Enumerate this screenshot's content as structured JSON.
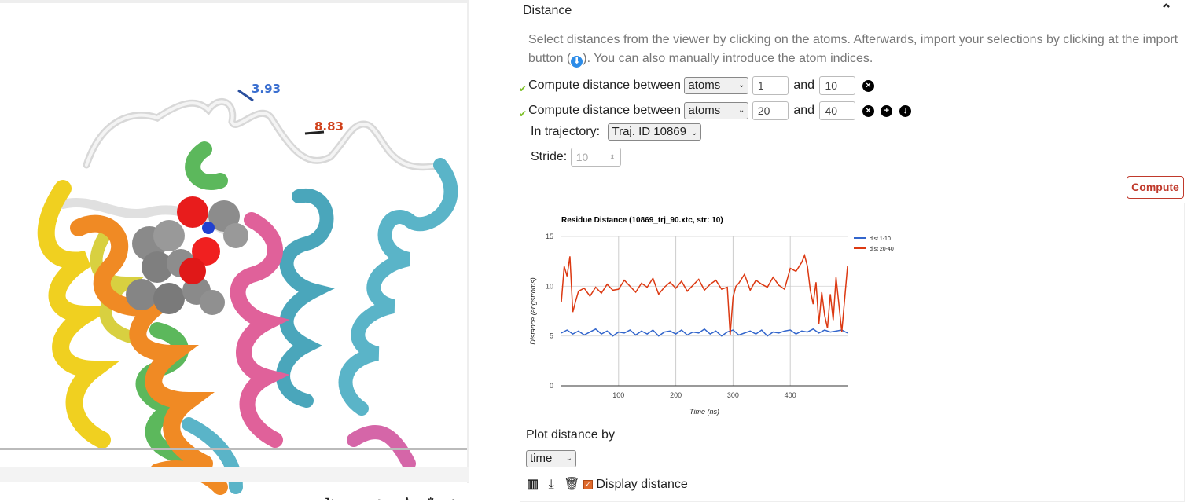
{
  "viewer": {
    "distance_labels": [
      "3.93",
      "8.83"
    ],
    "toolbar_icons": [
      "refresh-icon",
      "search-icon",
      "contrast-icon",
      "person-icon",
      "gear-icon",
      "info-icon"
    ]
  },
  "panel": {
    "section_title": "Distance",
    "description_before": "Select distances from the viewer by clicking on the atoms. Afterwards, import your selections by clicking at the import button (",
    "description_after": "). You can also manually introduce the atom indices.",
    "row_label": "Compute distance between",
    "and_label": "and",
    "rows": [
      {
        "type": "atoms",
        "from": "1",
        "to": "10"
      },
      {
        "type": "atoms",
        "from": "20",
        "to": "40"
      }
    ],
    "trajectory_label": "In trajectory:",
    "trajectory_value": "Traj. ID 10869",
    "stride_label": "Stride:",
    "stride_value": "10",
    "compute_label": "Compute",
    "plot_by_label": "Plot distance by",
    "plot_by_value": "time",
    "display_distance_label": "Display distance",
    "colors": {
      "accent": "#c0392b",
      "check": "#7dc028",
      "info": "#2d8ce8"
    }
  },
  "chart_data": {
    "type": "line",
    "title": "Residue Distance (10869_trj_90.xtc, str: 10)",
    "xlabel": "Time (ns)",
    "ylabel": "Distance (angstroms)",
    "xlim": [
      0,
      500
    ],
    "ylim": [
      0,
      15
    ],
    "xticks": [
      100,
      200,
      300,
      400
    ],
    "yticks": [
      0,
      5,
      10,
      15
    ],
    "legend_position": "top-right",
    "grid": true,
    "series": [
      {
        "name": "dist 1-10",
        "color": "#3366cc",
        "x": [
          0,
          10,
          20,
          30,
          40,
          50,
          60,
          70,
          80,
          90,
          100,
          110,
          120,
          130,
          140,
          150,
          160,
          170,
          180,
          190,
          200,
          210,
          220,
          230,
          240,
          250,
          260,
          270,
          280,
          290,
          300,
          310,
          320,
          330,
          340,
          350,
          360,
          370,
          380,
          390,
          400,
          410,
          420,
          430,
          440,
          450,
          460,
          470,
          480,
          490,
          500
        ],
        "y": [
          5.3,
          5.6,
          5.2,
          5.5,
          5.1,
          5.4,
          5.7,
          5.2,
          5.5,
          5.0,
          5.4,
          5.3,
          5.6,
          5.1,
          5.5,
          5.2,
          5.6,
          5.0,
          5.4,
          5.5,
          5.2,
          5.6,
          5.1,
          5.4,
          5.3,
          5.7,
          5.2,
          5.5,
          5.0,
          5.4,
          5.6,
          5.1,
          5.3,
          5.5,
          5.2,
          5.6,
          5.0,
          5.4,
          5.3,
          5.5,
          5.6,
          5.2,
          5.5,
          5.4,
          5.7,
          5.3,
          5.6,
          5.4,
          5.5,
          5.6,
          5.3
        ]
      },
      {
        "name": "dist 20-40",
        "color": "#dc3912",
        "x": [
          0,
          5,
          10,
          15,
          20,
          25,
          30,
          40,
          50,
          60,
          70,
          80,
          90,
          100,
          110,
          120,
          130,
          140,
          150,
          160,
          170,
          180,
          190,
          200,
          210,
          220,
          230,
          240,
          250,
          260,
          270,
          280,
          290,
          295,
          300,
          305,
          310,
          320,
          330,
          340,
          350,
          360,
          370,
          380,
          390,
          400,
          410,
          420,
          425,
          430,
          435,
          440,
          445,
          450,
          455,
          460,
          465,
          470,
          475,
          480,
          490,
          500
        ],
        "y": [
          8.4,
          12.0,
          11.0,
          13.0,
          7.4,
          8.5,
          9.5,
          9.8,
          9.0,
          9.9,
          9.3,
          10.2,
          9.6,
          9.7,
          10.6,
          10.0,
          9.4,
          10.3,
          9.9,
          10.8,
          9.2,
          9.9,
          10.4,
          9.8,
          10.5,
          9.5,
          10.1,
          10.7,
          9.6,
          10.2,
          10.6,
          9.7,
          9.9,
          5.1,
          8.9,
          10.0,
          10.3,
          11.2,
          9.6,
          10.6,
          10.2,
          9.9,
          10.9,
          10.1,
          9.7,
          11.8,
          11.5,
          12.4,
          13.1,
          12.0,
          9.6,
          8.2,
          10.4,
          6.2,
          9.4,
          7.1,
          5.8,
          9.2,
          6.6,
          10.9,
          5.4,
          12.0
        ]
      }
    ]
  }
}
